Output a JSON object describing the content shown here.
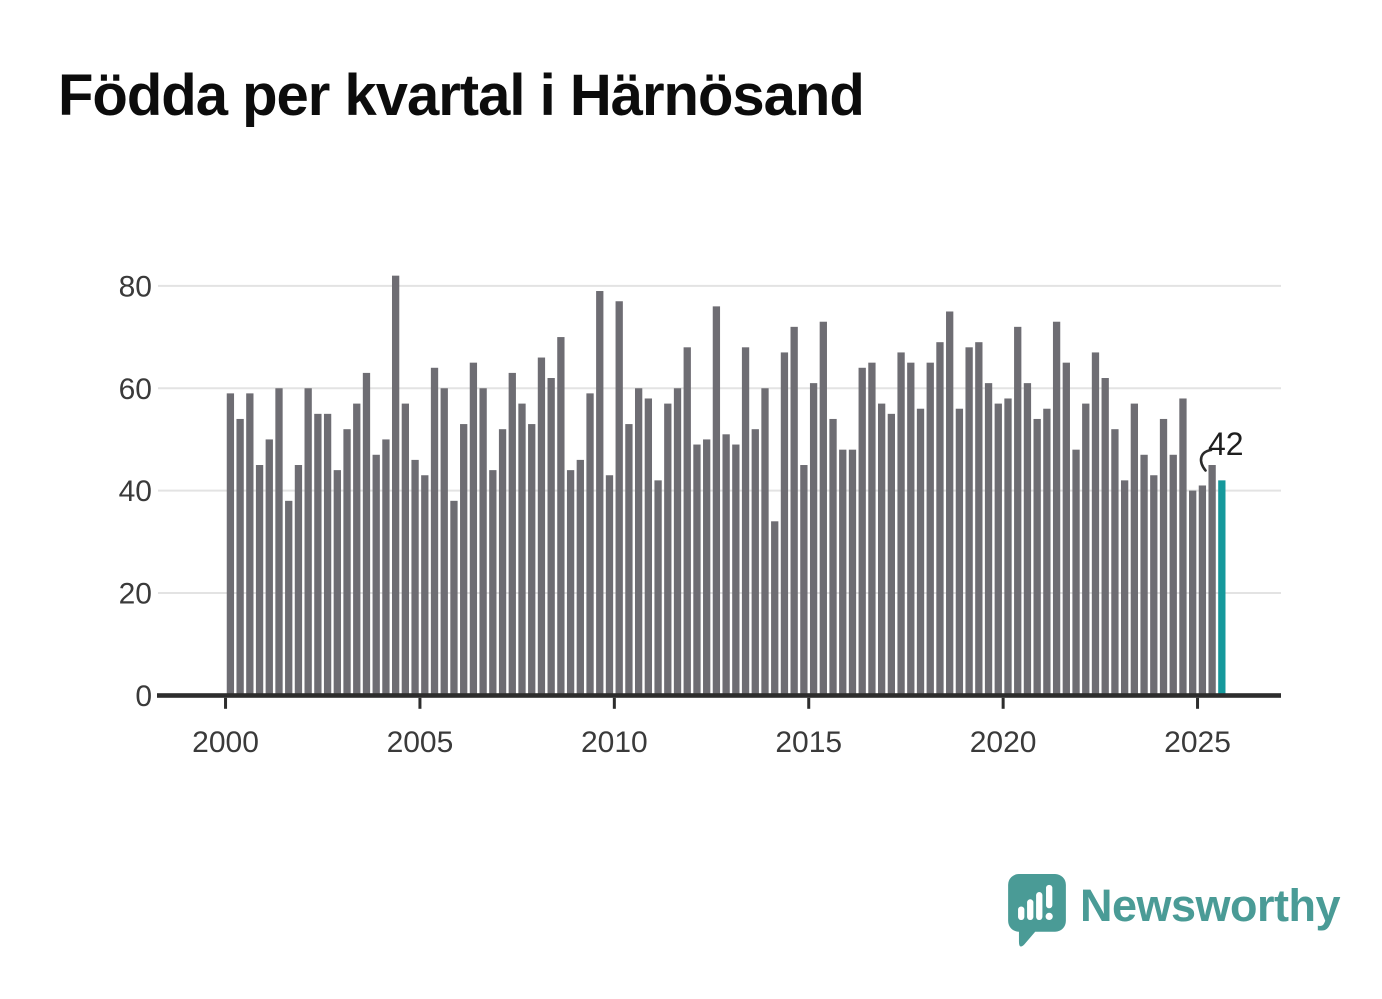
{
  "title": "Födda per kvartal i Härnösand",
  "chart_data": {
    "type": "bar",
    "title": "Födda per kvartal i Härnösand",
    "x_start": "2000-Q1",
    "x_end": "2025-Q3",
    "frequency": "quarterly",
    "values": [
      59,
      54,
      59,
      45,
      50,
      60,
      38,
      45,
      60,
      55,
      55,
      44,
      52,
      57,
      63,
      47,
      50,
      82,
      57,
      46,
      43,
      64,
      60,
      38,
      53,
      65,
      60,
      44,
      52,
      63,
      57,
      53,
      66,
      62,
      70,
      44,
      46,
      59,
      79,
      43,
      77,
      53,
      60,
      58,
      42,
      57,
      60,
      68,
      49,
      50,
      76,
      51,
      49,
      68,
      52,
      60,
      34,
      67,
      72,
      45,
      61,
      73,
      54,
      48,
      48,
      64,
      65,
      57,
      55,
      67,
      65,
      56,
      65,
      69,
      75,
      56,
      68,
      69,
      61,
      57,
      58,
      72,
      61,
      54,
      56,
      73,
      65,
      48,
      57,
      67,
      62,
      52,
      42,
      57,
      47,
      43,
      54,
      47,
      58,
      40,
      41,
      45,
      42
    ],
    "highlight_last": true,
    "highlight_value_label": "42",
    "x_tick_labels": [
      "2000",
      "2005",
      "2010",
      "2015",
      "2020",
      "2025"
    ],
    "y_ticks": [
      0,
      20,
      40,
      60,
      80
    ],
    "ylim": [
      0,
      88
    ],
    "grid": "horizontal",
    "legend": "none",
    "bar_color": "#6e6d73",
    "highlight_color": "#15999c",
    "axis_color": "#2d2d2d",
    "grid_color": "#e3e3e3",
    "tick_label_color": "#3a3a3a"
  },
  "footer": {
    "logo_text": "Newsworthy",
    "logo_color": "#4a9b96"
  }
}
